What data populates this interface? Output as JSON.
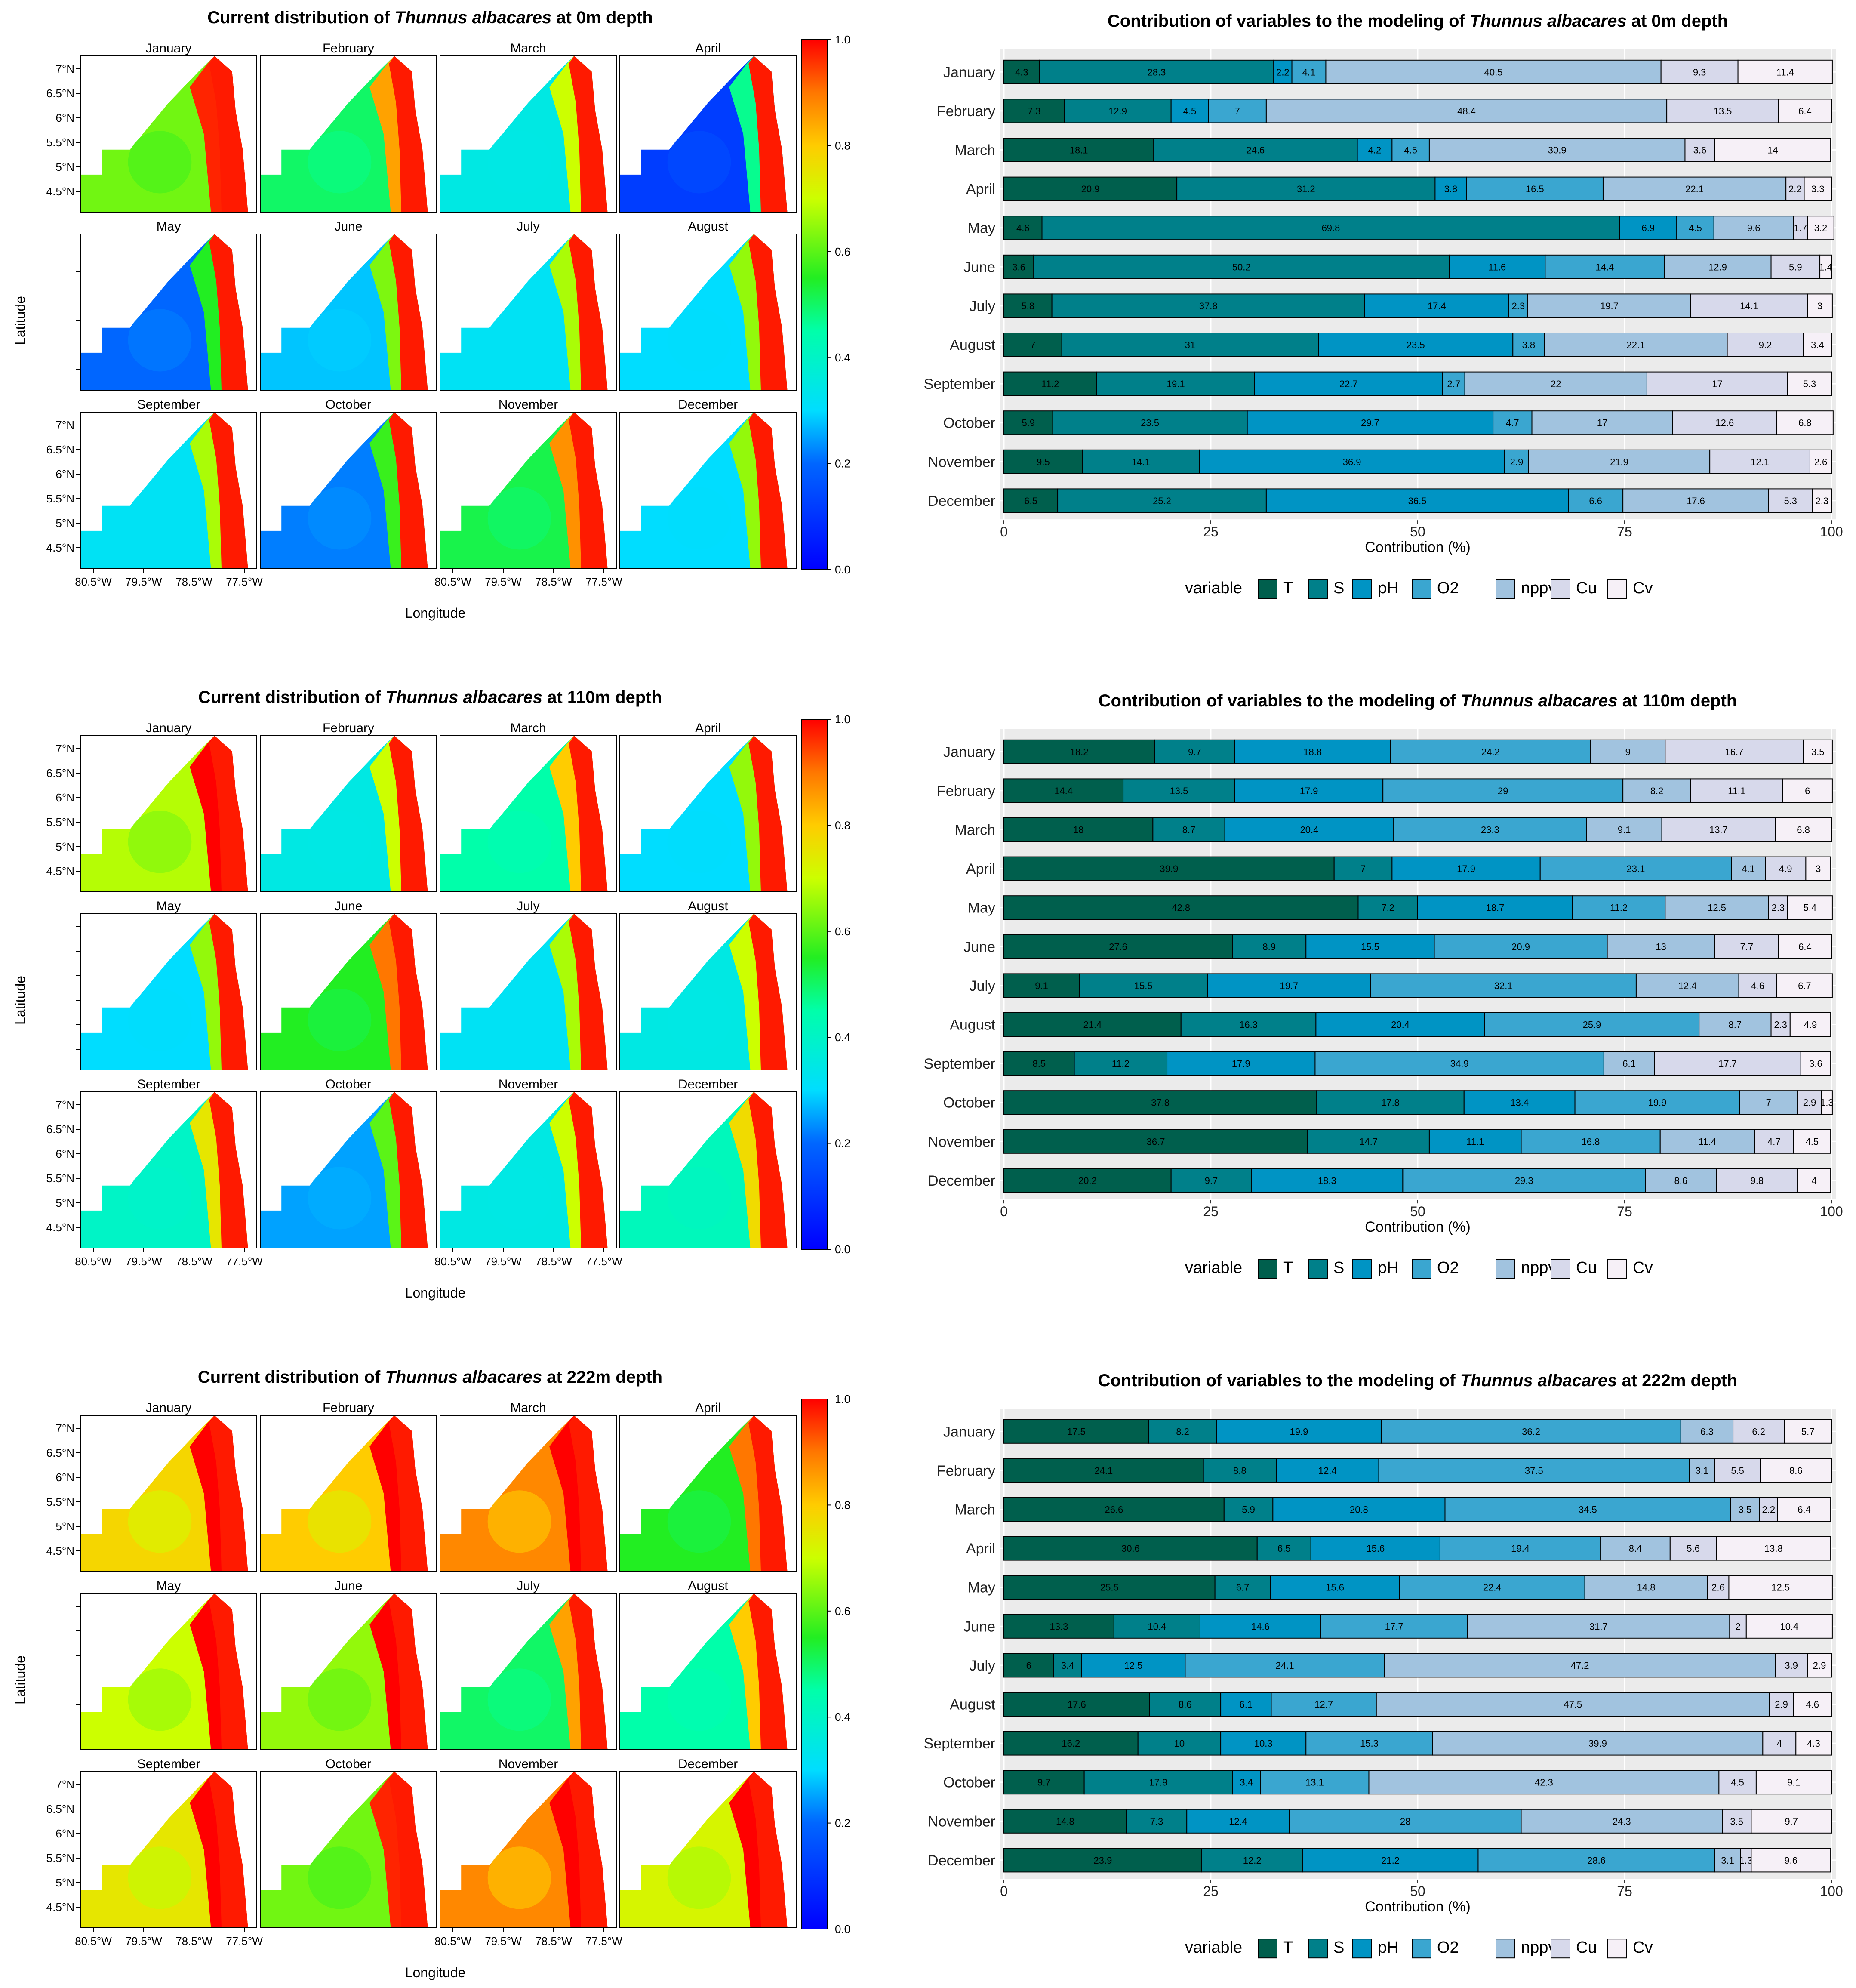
{
  "colors": {
    "variables": {
      "T": "#005f4d",
      "S": "#00808a",
      "pH": "#0094c4",
      "O2": "#3aa6d0",
      "nppv": "#a1c3df",
      "Cu": "#d7d9eb",
      "Cv": "#f6f0f7"
    },
    "map_palette": [
      "#0000ff",
      "#00aaff",
      "#00ffff",
      "#00ff66",
      "#22dd22",
      "#ffff00",
      "#ffa500",
      "#ff0000"
    ]
  },
  "months": [
    "January",
    "February",
    "March",
    "April",
    "May",
    "June",
    "July",
    "August",
    "September",
    "October",
    "November",
    "December"
  ],
  "map_axes": {
    "lat_ticks": [
      "7°N",
      "6.5°N",
      "6°N",
      "5.5°N",
      "5°N",
      "4.5°N"
    ],
    "lon_ticks": [
      "80.5°W",
      "79.5°W",
      "78.5°W",
      "77.5°W"
    ],
    "colorbar_ticks": [
      "0.0",
      "0.2",
      "0.4",
      "0.6",
      "0.8",
      "1.0"
    ],
    "xlabel": "Longitude",
    "ylabel": "Latitude"
  },
  "legend": {
    "title": "variable",
    "items": [
      "T",
      "S",
      "pH",
      "O2",
      "nppv",
      "Cu",
      "Cv"
    ]
  },
  "chart_data": [
    {
      "type": "heatmap",
      "title_prefix": "Current distribution of ",
      "title_species": "Thunnus albacares",
      "title_suffix": " at 0m depth",
      "xlabel": "Longitude",
      "ylabel": "Latitude",
      "zlim": [
        0,
        1
      ],
      "panels": [
        "January",
        "February",
        "March",
        "April",
        "May",
        "June",
        "July",
        "August",
        "September",
        "October",
        "November",
        "December"
      ],
      "mean_suitability": [
        0.62,
        0.5,
        0.35,
        0.12,
        0.2,
        0.28,
        0.32,
        0.3,
        0.32,
        0.22,
        0.52,
        0.3
      ]
    },
    {
      "type": "bar",
      "orientation": "horizontal",
      "stacked": true,
      "title_prefix": "Contribution of variables to the modeling of ",
      "title_species": "Thunnus albacares",
      "title_suffix": " at 0m depth",
      "xlabel": "Contribution (%)",
      "xlim": [
        0,
        100
      ],
      "xticks": [
        "0",
        "25",
        "50",
        "75",
        "100"
      ],
      "categories": [
        "January",
        "February",
        "March",
        "April",
        "May",
        "June",
        "July",
        "August",
        "September",
        "October",
        "November",
        "December"
      ],
      "series": [
        {
          "name": "T",
          "values": [
            4.3,
            7.3,
            18.1,
            20.9,
            4.6,
            3.6,
            5.8,
            7,
            11.2,
            5.9,
            9.5,
            6.5
          ]
        },
        {
          "name": "S",
          "values": [
            28.3,
            12.9,
            24.6,
            31.2,
            69.8,
            50.2,
            37.8,
            31,
            19.1,
            23.5,
            14.1,
            25.2
          ]
        },
        {
          "name": "pH",
          "values": [
            2.2,
            4.5,
            4.2,
            3.8,
            6.9,
            11.6,
            17.4,
            23.5,
            22.7,
            29.7,
            36.9,
            36.5
          ]
        },
        {
          "name": "O2",
          "values": [
            4.1,
            7,
            4.5,
            16.5,
            4.5,
            14.4,
            2.3,
            3.8,
            2.7,
            4.7,
            2.9,
            6.6
          ]
        },
        {
          "name": "nppv",
          "values": [
            40.5,
            48.4,
            30.9,
            22.1,
            9.6,
            12.9,
            19.7,
            22.1,
            22,
            17,
            21.9,
            17.6
          ]
        },
        {
          "name": "Cu",
          "values": [
            9.3,
            13.5,
            3.6,
            2.2,
            1.7,
            5.9,
            14.1,
            9.2,
            17,
            12.6,
            12.1,
            5.3
          ]
        },
        {
          "name": "Cv",
          "values": [
            11.4,
            6.4,
            14,
            3.3,
            3.2,
            1.4,
            3,
            3.4,
            5.3,
            6.8,
            2.6,
            2.3
          ]
        }
      ]
    },
    {
      "type": "heatmap",
      "title_prefix": "Current distribution of ",
      "title_species": "Thunnus albacares",
      "title_suffix": " at 110m depth",
      "xlabel": "Longitude",
      "ylabel": "Latitude",
      "zlim": [
        0,
        1
      ],
      "panels": [
        "January",
        "February",
        "March",
        "April",
        "May",
        "June",
        "July",
        "August",
        "September",
        "October",
        "November",
        "December"
      ],
      "mean_suitability": [
        0.68,
        0.35,
        0.45,
        0.3,
        0.3,
        0.55,
        0.32,
        0.35,
        0.4,
        0.25,
        0.35,
        0.42
      ]
    },
    {
      "type": "bar",
      "orientation": "horizontal",
      "stacked": true,
      "title_prefix": "Contribution of variables to the modeling of ",
      "title_species": "Thunnus albacares",
      "title_suffix": " at 110m depth",
      "xlabel": "Contribution (%)",
      "xlim": [
        0,
        100
      ],
      "xticks": [
        "0",
        "25",
        "50",
        "75",
        "100"
      ],
      "categories": [
        "January",
        "February",
        "March",
        "April",
        "May",
        "June",
        "July",
        "August",
        "September",
        "October",
        "November",
        "December"
      ],
      "series": [
        {
          "name": "T",
          "values": [
            18.2,
            14.4,
            18,
            39.9,
            42.8,
            27.6,
            9.1,
            21.4,
            8.5,
            37.8,
            36.7,
            20.2
          ]
        },
        {
          "name": "S",
          "values": [
            9.7,
            13.5,
            8.7,
            7,
            7.2,
            8.9,
            15.5,
            16.3,
            11.2,
            17.8,
            14.7,
            9.7
          ]
        },
        {
          "name": "pH",
          "values": [
            18.8,
            17.9,
            20.4,
            17.9,
            18.7,
            15.5,
            19.7,
            20.4,
            17.9,
            13.4,
            11.1,
            18.3
          ]
        },
        {
          "name": "O2",
          "values": [
            24.2,
            29,
            23.3,
            23.1,
            11.2,
            20.9,
            32.1,
            25.9,
            34.9,
            19.9,
            16.8,
            29.3
          ]
        },
        {
          "name": "nppv",
          "values": [
            9,
            8.2,
            9.1,
            4.1,
            12.5,
            13,
            12.4,
            8.7,
            6.1,
            7,
            11.4,
            8.6
          ]
        },
        {
          "name": "Cu",
          "values": [
            16.7,
            11.1,
            13.7,
            4.9,
            2.3,
            7.7,
            4.6,
            2.3,
            17.7,
            2.9,
            4.7,
            9.8
          ]
        },
        {
          "name": "Cv",
          "values": [
            3.5,
            6,
            6.8,
            3,
            5.4,
            6.4,
            6.7,
            4.9,
            3.6,
            1.3,
            4.5,
            4
          ]
        }
      ]
    },
    {
      "type": "heatmap",
      "title_prefix": "Current distribution of ",
      "title_species": "Thunnus albacares",
      "title_suffix": " at 222m depth",
      "xlabel": "Longitude",
      "ylabel": "Latitude",
      "zlim": [
        0,
        1
      ],
      "panels": [
        "January",
        "February",
        "March",
        "April",
        "May",
        "June",
        "July",
        "August",
        "September",
        "October",
        "November",
        "December"
      ],
      "mean_suitability": [
        0.78,
        0.8,
        0.88,
        0.55,
        0.7,
        0.65,
        0.5,
        0.45,
        0.75,
        0.62,
        0.88,
        0.72
      ]
    },
    {
      "type": "bar",
      "orientation": "horizontal",
      "stacked": true,
      "title_prefix": "Contribution of variables to the modeling of ",
      "title_species": "Thunnus albacares",
      "title_suffix": " at 222m depth",
      "xlabel": "Contribution (%)",
      "xlim": [
        0,
        100
      ],
      "xticks": [
        "0",
        "25",
        "50",
        "75",
        "100"
      ],
      "categories": [
        "January",
        "February",
        "March",
        "April",
        "May",
        "June",
        "July",
        "August",
        "September",
        "October",
        "November",
        "December"
      ],
      "series": [
        {
          "name": "T",
          "values": [
            17.5,
            24.1,
            26.6,
            30.6,
            25.5,
            13.3,
            6,
            17.6,
            16.2,
            9.7,
            14.8,
            23.9
          ]
        },
        {
          "name": "S",
          "values": [
            8.2,
            8.8,
            5.9,
            6.5,
            6.7,
            10.4,
            3.4,
            8.6,
            10,
            17.9,
            7.3,
            12.2
          ]
        },
        {
          "name": "pH",
          "values": [
            19.9,
            12.4,
            20.8,
            15.6,
            15.6,
            14.6,
            12.5,
            6.1,
            10.3,
            3.4,
            12.4,
            21.2
          ]
        },
        {
          "name": "O2",
          "values": [
            36.2,
            37.5,
            34.5,
            19.4,
            22.4,
            17.7,
            24.1,
            12.7,
            15.3,
            13.1,
            28,
            28.6
          ]
        },
        {
          "name": "nppv",
          "values": [
            6.3,
            3.1,
            3.5,
            8.4,
            14.8,
            31.7,
            47.2,
            47.5,
            39.9,
            42.3,
            24.3,
            3.1
          ]
        },
        {
          "name": "Cu",
          "values": [
            6.2,
            5.5,
            2.2,
            5.6,
            2.6,
            2,
            3.9,
            2.9,
            4,
            4.5,
            3.5,
            1.3
          ]
        },
        {
          "name": "Cv",
          "values": [
            5.7,
            8.6,
            6.4,
            13.8,
            12.5,
            10.4,
            2.9,
            4.6,
            4.3,
            9.1,
            9.7,
            9.6
          ]
        }
      ]
    }
  ]
}
